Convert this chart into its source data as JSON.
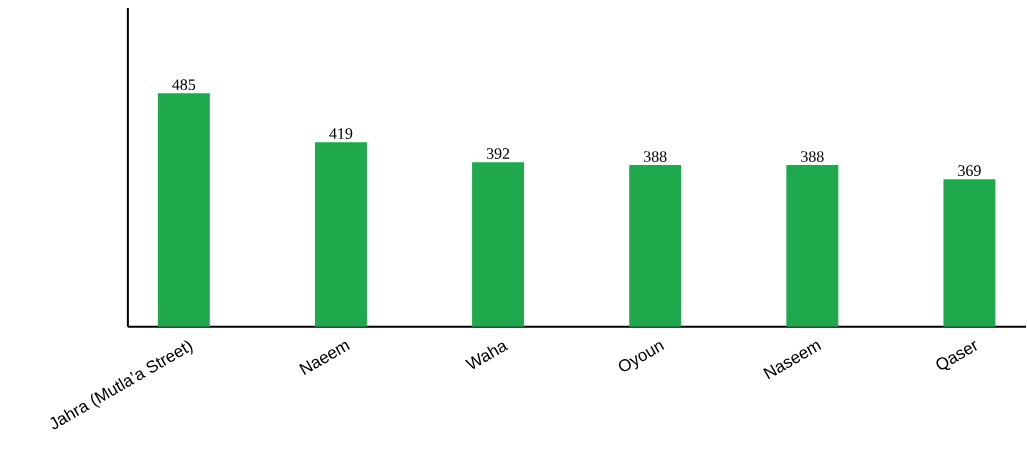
{
  "chart_data": {
    "type": "bar",
    "categories": [
      "Jahra (Mutla’a Street)",
      "Naeem",
      "Waha",
      "Oyoun",
      "Naseem",
      "Qaser"
    ],
    "values": [
      485,
      419,
      392,
      388,
      388,
      369
    ],
    "color": "#1fa84c",
    "ylim": [
      170,
      600
    ],
    "data_labels": true
  }
}
